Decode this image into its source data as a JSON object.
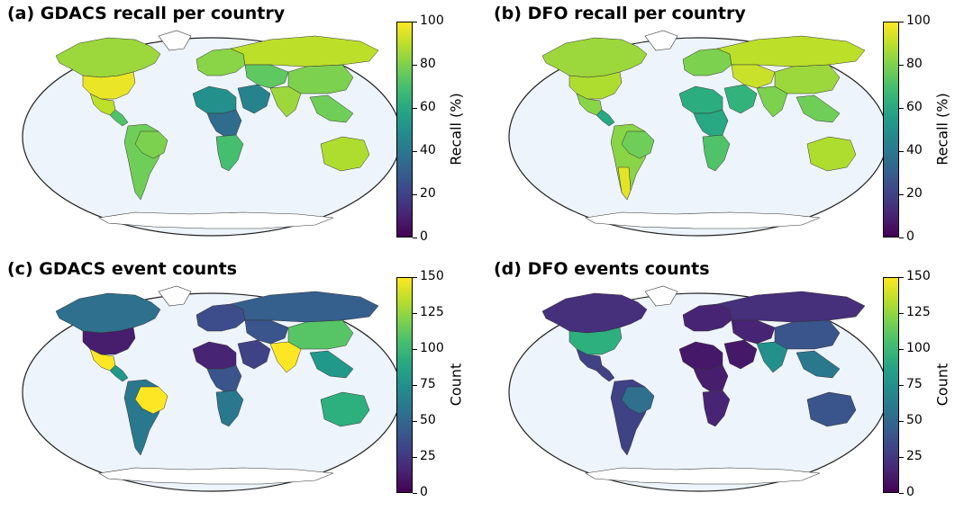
{
  "panels": [
    {
      "id": "a",
      "title": "(a)  GDACS recall per country",
      "colorbar": {
        "label": "Recall (%)",
        "ticks": [
          "0",
          "20",
          "40",
          "60",
          "80",
          "100"
        ],
        "min": 0,
        "max": 100
      },
      "regions": [
        {
          "name": "north-america",
          "value": 85
        },
        {
          "name": "united-states",
          "value": 97
        },
        {
          "name": "mexico",
          "value": 90
        },
        {
          "name": "central-america",
          "value": 72
        },
        {
          "name": "south-america",
          "value": 78
        },
        {
          "name": "brazil",
          "value": 80
        },
        {
          "name": "west-africa",
          "value": 50
        },
        {
          "name": "central-africa",
          "value": 35
        },
        {
          "name": "southern-africa",
          "value": 70
        },
        {
          "name": "europe",
          "value": 82
        },
        {
          "name": "middle-east",
          "value": 45
        },
        {
          "name": "russia",
          "value": 90
        },
        {
          "name": "central-asia",
          "value": 75
        },
        {
          "name": "south-asia",
          "value": 85
        },
        {
          "name": "east-asia",
          "value": 80
        },
        {
          "name": "southeast-asia",
          "value": 78
        },
        {
          "name": "australia",
          "value": 88
        }
      ]
    },
    {
      "id": "b",
      "title": "(b)  DFO recall per country",
      "colorbar": {
        "label": "Recall (%)",
        "ticks": [
          "0",
          "20",
          "40",
          "60",
          "80",
          "100"
        ],
        "min": 0,
        "max": 100
      },
      "regions": [
        {
          "name": "north-america",
          "value": 85
        },
        {
          "name": "united-states",
          "value": 88
        },
        {
          "name": "mexico",
          "value": 82
        },
        {
          "name": "central-america",
          "value": 60
        },
        {
          "name": "south-america",
          "value": 82
        },
        {
          "name": "brazil",
          "value": 78
        },
        {
          "name": "argentina",
          "value": 96
        },
        {
          "name": "west-africa",
          "value": 62
        },
        {
          "name": "central-africa",
          "value": 60
        },
        {
          "name": "southern-africa",
          "value": 72
        },
        {
          "name": "europe",
          "value": 80
        },
        {
          "name": "middle-east",
          "value": 65
        },
        {
          "name": "russia",
          "value": 90
        },
        {
          "name": "central-asia",
          "value": 92
        },
        {
          "name": "south-asia",
          "value": 80
        },
        {
          "name": "east-asia",
          "value": 85
        },
        {
          "name": "southeast-asia",
          "value": 78
        },
        {
          "name": "australia",
          "value": 88
        }
      ]
    },
    {
      "id": "c",
      "title": "(c)  GDACS event counts",
      "colorbar": {
        "label": "Count",
        "ticks": [
          "0",
          "25",
          "50",
          "75",
          "100",
          "125",
          "150"
        ],
        "min": 0,
        "max": 150
      },
      "regions": [
        {
          "name": "north-america",
          "value": 55
        },
        {
          "name": "united-states",
          "value": 12
        },
        {
          "name": "mexico",
          "value": 150
        },
        {
          "name": "central-america",
          "value": 80
        },
        {
          "name": "south-america",
          "value": 60
        },
        {
          "name": "brazil",
          "value": 150
        },
        {
          "name": "west-africa",
          "value": 15
        },
        {
          "name": "central-africa",
          "value": 40
        },
        {
          "name": "southern-africa",
          "value": 60
        },
        {
          "name": "europe",
          "value": 35
        },
        {
          "name": "middle-east",
          "value": 30
        },
        {
          "name": "russia",
          "value": 45
        },
        {
          "name": "central-asia",
          "value": 40
        },
        {
          "name": "south-asia",
          "value": 150
        },
        {
          "name": "east-asia",
          "value": 110
        },
        {
          "name": "southeast-asia",
          "value": 80
        },
        {
          "name": "australia",
          "value": 95
        }
      ]
    },
    {
      "id": "d",
      "title": "(d)  DFO events counts",
      "colorbar": {
        "label": "Count",
        "ticks": [
          "0",
          "25",
          "50",
          "75",
          "100",
          "125",
          "150"
        ],
        "min": 0,
        "max": 150
      },
      "regions": [
        {
          "name": "north-america",
          "value": 20
        },
        {
          "name": "united-states",
          "value": 95
        },
        {
          "name": "mexico",
          "value": 30
        },
        {
          "name": "central-america",
          "value": 30
        },
        {
          "name": "south-america",
          "value": 30
        },
        {
          "name": "brazil",
          "value": 55
        },
        {
          "name": "west-africa",
          "value": 10
        },
        {
          "name": "central-africa",
          "value": 12
        },
        {
          "name": "southern-africa",
          "value": 15
        },
        {
          "name": "europe",
          "value": 15
        },
        {
          "name": "middle-east",
          "value": 10
        },
        {
          "name": "russia",
          "value": 20
        },
        {
          "name": "central-asia",
          "value": 15
        },
        {
          "name": "south-asia",
          "value": 75
        },
        {
          "name": "east-asia",
          "value": 40
        },
        {
          "name": "southeast-asia",
          "value": 60
        },
        {
          "name": "australia",
          "value": 40
        }
      ]
    }
  ]
}
